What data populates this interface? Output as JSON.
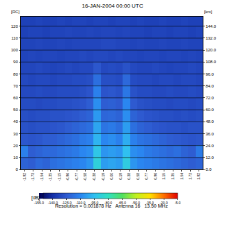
{
  "chart_data": {
    "type": "heatmap",
    "title": "16-JAN-2004 00:00 UTC",
    "ylabel": "[RC]",
    "y2label": "[km]",
    "annotations": [
      "Resolution = 0.001878 Hz",
      "Antenna 16",
      "13.50 MHz"
    ],
    "grid": true,
    "x": [
      -1.92,
      -1.76,
      -1.6,
      -1.44,
      -1.28,
      -1.12,
      -0.96,
      -0.8,
      -0.64,
      -0.48,
      -0.32,
      -0.16,
      0,
      0.16,
      0.32,
      0.48,
      0.64,
      0.8,
      0.96,
      1.12,
      1.28,
      1.44,
      1.6,
      1.76,
      1.92
    ],
    "y": [
      5,
      15,
      25,
      35,
      45,
      55,
      65,
      75,
      85,
      95,
      105,
      115,
      125
    ],
    "cells": [
      [
        -122,
        -124,
        -120,
        -122,
        -118,
        -116,
        -114,
        -112,
        -110,
        -106,
        -88,
        -104,
        -102,
        -104,
        -90,
        -106,
        -110,
        -112,
        -114,
        -116,
        -118,
        -120,
        -122,
        -124,
        -122
      ],
      [
        -112,
        -124,
        -122,
        -120,
        -120,
        -118,
        -116,
        -114,
        -110,
        -108,
        -92,
        -106,
        -104,
        -106,
        -95,
        -108,
        -110,
        -114,
        -116,
        -118,
        -120,
        -118,
        -122,
        -124,
        -114
      ],
      [
        -126,
        -127,
        -126,
        -124,
        -124,
        -122,
        -120,
        -118,
        -114,
        -112,
        -98,
        -110,
        -108,
        -112,
        -100,
        -112,
        -116,
        -118,
        -120,
        -122,
        -124,
        -125,
        -126,
        -127,
        -126
      ],
      [
        -128,
        -129,
        -128,
        -128,
        -127,
        -126,
        -124,
        -122,
        -120,
        -118,
        -102,
        -116,
        -114,
        -118,
        -104,
        -118,
        -122,
        -124,
        -126,
        -127,
        -128,
        -128,
        -129,
        -128,
        -128
      ],
      [
        -129,
        -130,
        -129,
        -129,
        -128,
        -128,
        -127,
        -126,
        -124,
        -122,
        -105,
        -121,
        -120,
        -122,
        -108,
        -122,
        -125,
        -127,
        -128,
        -129,
        -129,
        -130,
        -129,
        -130,
        -129
      ],
      [
        -130,
        -130,
        -131,
        -130,
        -130,
        -129,
        -129,
        -128,
        -127,
        -124,
        -108,
        -124,
        -123,
        -125,
        -110,
        -125,
        -128,
        -129,
        -130,
        -130,
        -131,
        -130,
        -130,
        -131,
        -130
      ],
      [
        -131,
        -131,
        -130,
        -131,
        -131,
        -130,
        -130,
        -130,
        -129,
        -127,
        -112,
        -127,
        -126,
        -128,
        -115,
        -128,
        -130,
        -130,
        -131,
        -131,
        -130,
        -131,
        -131,
        -130,
        -131
      ],
      [
        -131,
        -132,
        -131,
        -131,
        -132,
        -131,
        -131,
        -130,
        -130,
        -129,
        -118,
        -129,
        -129,
        -130,
        -120,
        -130,
        -131,
        -131,
        -132,
        -131,
        -131,
        -132,
        -131,
        -131,
        -132
      ],
      [
        -132,
        -132,
        -131,
        -132,
        -133,
        -132,
        -131,
        -132,
        -131,
        -131,
        -126,
        -131,
        -130,
        -131,
        -128,
        -131,
        -132,
        -132,
        -131,
        -132,
        -133,
        -132,
        -132,
        -131,
        -132
      ],
      [
        -133,
        -132,
        -133,
        -132,
        -132,
        -133,
        -132,
        -132,
        -131,
        -132,
        -131,
        -131,
        -132,
        -131,
        -132,
        -132,
        -133,
        -132,
        -132,
        -133,
        -132,
        -132,
        -133,
        -132,
        -133
      ],
      [
        -133,
        -133,
        -132,
        -133,
        -133,
        -132,
        -133,
        -132,
        -132,
        -132,
        -132,
        -131,
        -131,
        -132,
        -132,
        -133,
        -132,
        -133,
        -133,
        -132,
        -133,
        -133,
        -132,
        -133,
        -133
      ],
      [
        -134,
        -133,
        -133,
        -134,
        -133,
        -133,
        -132,
        -133,
        -133,
        -132,
        -133,
        -132,
        -132,
        -133,
        -132,
        -133,
        -133,
        -134,
        -133,
        -133,
        -134,
        -133,
        -133,
        -134,
        -133
      ],
      [
        -134,
        -134,
        -133,
        -134,
        -134,
        -133,
        -134,
        -133,
        -133,
        -134,
        -133,
        -133,
        -134,
        -133,
        -133,
        -134,
        -133,
        -134,
        -134,
        -133,
        -134,
        -134,
        -133,
        -134,
        -134
      ]
    ],
    "xlim": [
      -2.0,
      2.0
    ],
    "xticks": [
      -1.92,
      -1.73,
      -1.54,
      -1.35,
      -1.15,
      -0.96,
      -0.77,
      -0.58,
      -0.38,
      -0.19,
      {
        "value": 0,
        "label": "0.00"
      },
      0.19,
      0.38,
      0.58,
      0.77,
      0.96,
      1.15,
      1.35,
      1.54,
      1.73,
      1.92
    ],
    "ylim": [
      0,
      128
    ],
    "yticks": [
      0,
      10,
      20,
      30,
      40,
      50,
      60,
      70,
      80,
      90,
      100,
      110,
      120
    ],
    "y2lim": [
      0,
      153.6
    ],
    "y2ticks": [
      {
        "value": 0,
        "label": "0.0"
      },
      {
        "value": 12,
        "label": "12.0"
      },
      {
        "value": 24,
        "label": "24.0"
      },
      {
        "value": 36,
        "label": "36.0"
      },
      {
        "value": 48,
        "label": "48.0"
      },
      {
        "value": 60,
        "label": "60.0"
      },
      {
        "value": 72,
        "label": "72.0"
      },
      {
        "value": 84,
        "label": "84.0"
      },
      {
        "value": 96,
        "label": "96.0"
      },
      {
        "value": 108,
        "label": "108.0"
      },
      {
        "value": 120,
        "label": "120.0"
      },
      {
        "value": 132,
        "label": "132.0"
      },
      {
        "value": 144,
        "label": "144.0"
      }
    ],
    "colorbar": {
      "title": "[dB]",
      "range": [
        -155,
        -5
      ],
      "ticks": [
        {
          "value": -155,
          "label": "-155.0"
        },
        {
          "value": -140,
          "label": "-140.0"
        },
        {
          "value": -125,
          "label": "-125.0"
        },
        {
          "value": -110,
          "label": "-110.0"
        },
        {
          "value": -95,
          "label": "-95.0"
        },
        {
          "value": -80,
          "label": "-80.0"
        },
        {
          "value": -65,
          "label": "-65.0"
        },
        {
          "value": -50,
          "label": "-50.0"
        },
        {
          "value": -35,
          "label": "-35.0"
        },
        {
          "value": -20,
          "label": "-20.0"
        },
        {
          "value": -5,
          "label": "-5.0"
        }
      ]
    }
  }
}
